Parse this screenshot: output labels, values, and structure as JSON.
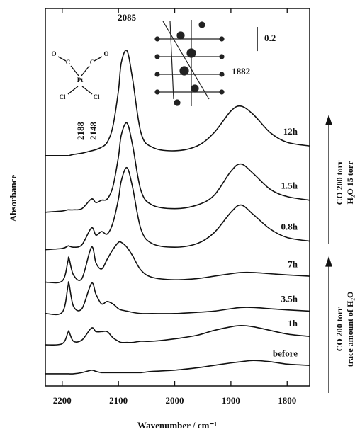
{
  "chart_data": {
    "type": "line",
    "xlabel": "Wavenumber / cm⁻¹",
    "ylabel": "Absorbance",
    "x": [
      2230,
      2200,
      2190,
      2188,
      2180,
      2165,
      2148,
      2140,
      2130,
      2120,
      2110,
      2100,
      2095,
      2085,
      2075,
      2060,
      2040,
      2000,
      1960,
      1930,
      1900,
      1882,
      1860,
      1830,
      1800,
      1760
    ],
    "xlim": [
      2230,
      1760
    ],
    "xticks": [
      2200,
      2100,
      2000,
      1900,
      1800
    ],
    "ylim": [
      0,
      3.13
    ],
    "scale_bar": 0.2,
    "peak_labels": [
      2085,
      1882,
      2188,
      2148
    ],
    "structure_labels": [
      "Pt",
      "Cl",
      "Cl",
      "C",
      "C",
      "O",
      "O"
    ],
    "conditions": [
      {
        "lines": [
          "CO 200 torr",
          "H₂O 15 torr"
        ]
      },
      {
        "lines": [
          "CO 200 torr",
          "trace amount of H₂O"
        ]
      }
    ],
    "series": [
      {
        "name": "before",
        "color": "#111111",
        "values": [
          0.1,
          0.1,
          0.1,
          0.1,
          0.1,
          0.11,
          0.13,
          0.12,
          0.11,
          0.11,
          0.11,
          0.11,
          0.11,
          0.11,
          0.11,
          0.11,
          0.12,
          0.13,
          0.15,
          0.17,
          0.19,
          0.2,
          0.21,
          0.2,
          0.18,
          0.17
        ]
      },
      {
        "name": "1h",
        "color": "#111111",
        "values": [
          0.34,
          0.35,
          0.44,
          0.45,
          0.37,
          0.38,
          0.48,
          0.45,
          0.45,
          0.45,
          0.4,
          0.37,
          0.36,
          0.36,
          0.36,
          0.37,
          0.37,
          0.39,
          0.42,
          0.46,
          0.49,
          0.5,
          0.49,
          0.46,
          0.43,
          0.41
        ]
      },
      {
        "name": "3.5h",
        "color": "#111111",
        "values": [
          0.6,
          0.61,
          0.82,
          0.85,
          0.66,
          0.64,
          0.85,
          0.76,
          0.68,
          0.7,
          0.68,
          0.64,
          0.63,
          0.62,
          0.61,
          0.6,
          0.6,
          0.6,
          0.61,
          0.62,
          0.64,
          0.65,
          0.65,
          0.64,
          0.63,
          0.62
        ]
      },
      {
        "name": "7h",
        "color": "#111111",
        "values": [
          0.86,
          0.87,
          1.03,
          1.06,
          0.92,
          0.89,
          1.15,
          1.02,
          0.97,
          1.05,
          1.13,
          1.19,
          1.19,
          1.15,
          1.08,
          0.96,
          0.9,
          0.88,
          0.89,
          0.91,
          0.93,
          0.94,
          0.94,
          0.93,
          0.92,
          0.91
        ]
      },
      {
        "name": "0.8h",
        "color": "#111111",
        "values": [
          1.13,
          1.14,
          1.16,
          1.16,
          1.15,
          1.17,
          1.31,
          1.25,
          1.28,
          1.26,
          1.35,
          1.55,
          1.7,
          1.81,
          1.65,
          1.3,
          1.18,
          1.15,
          1.18,
          1.27,
          1.44,
          1.5,
          1.42,
          1.3,
          1.23,
          1.2
        ]
      },
      {
        "name": "1.5h",
        "color": "#111111",
        "values": [
          1.44,
          1.45,
          1.46,
          1.46,
          1.46,
          1.47,
          1.55,
          1.52,
          1.54,
          1.55,
          1.65,
          1.9,
          2.08,
          2.18,
          2.0,
          1.62,
          1.5,
          1.47,
          1.5,
          1.58,
          1.78,
          1.84,
          1.76,
          1.63,
          1.57,
          1.54
        ]
      },
      {
        "name": "12h",
        "color": "#111111",
        "values": [
          1.91,
          1.91,
          1.91,
          1.91,
          1.92,
          1.93,
          1.95,
          1.96,
          1.98,
          2.02,
          2.15,
          2.45,
          2.68,
          2.78,
          2.55,
          2.1,
          1.98,
          1.95,
          1.99,
          2.1,
          2.28,
          2.32,
          2.25,
          2.1,
          2.02,
          1.99
        ]
      }
    ]
  }
}
